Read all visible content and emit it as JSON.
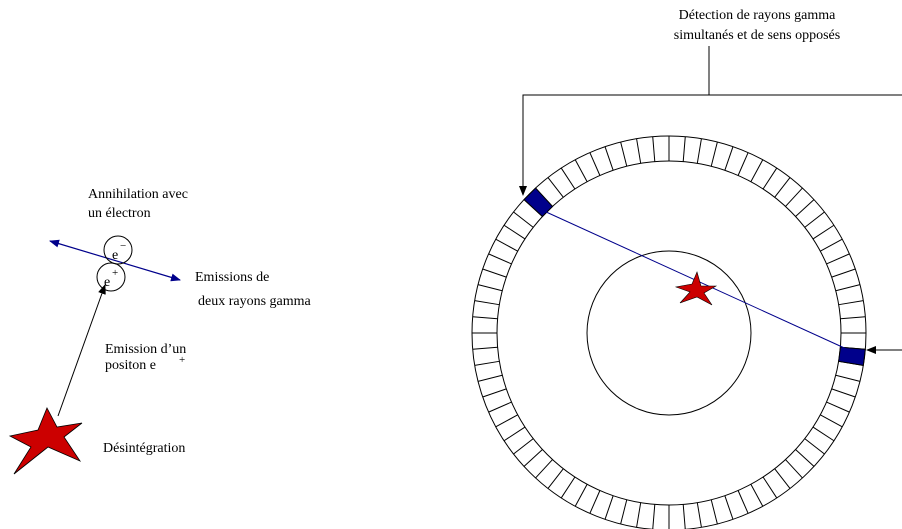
{
  "left": {
    "annihilation": [
      "Annihilation avec",
      "un électron"
    ],
    "electron": {
      "symbol": "e",
      "charge": "−"
    },
    "positron": {
      "symbol": "e",
      "charge": "+"
    },
    "emissions": [
      "Emissions de",
      "deux rayons  gamma"
    ],
    "positon_emission": {
      "line1": "Emission d’un",
      "line2": "positon e",
      "charge": "+"
    },
    "decay": "Désintégration"
  },
  "right": {
    "detection": [
      "Détection de rayons gamma",
      "simultanés et de sens opposés"
    ]
  }
}
